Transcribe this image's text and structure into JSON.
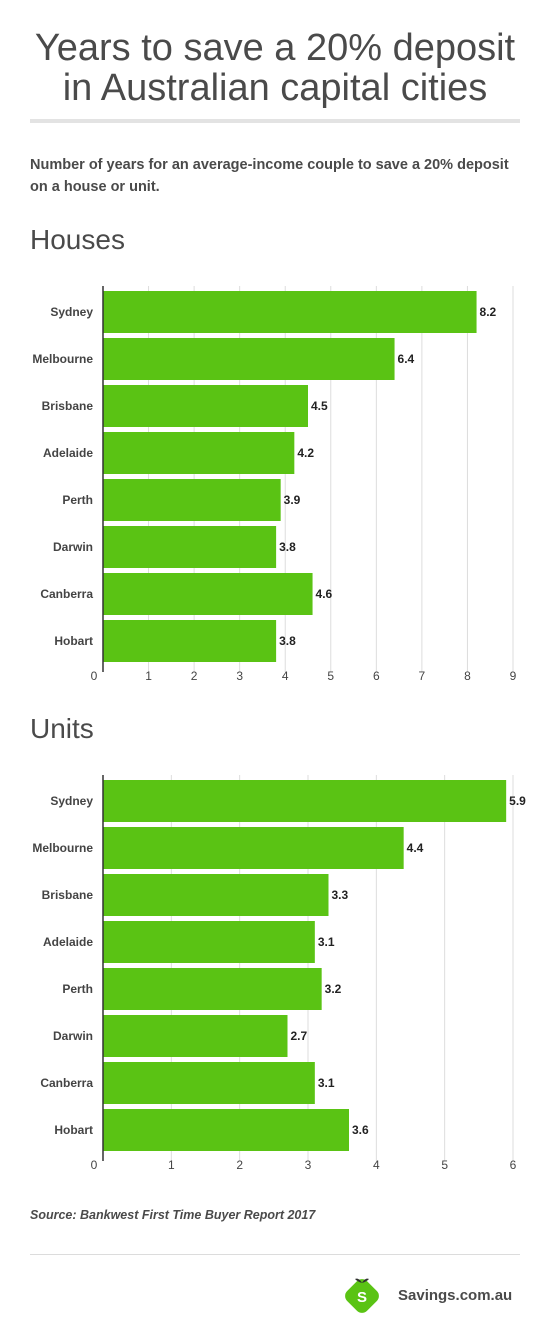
{
  "title_line1": "Years to save a 20% deposit",
  "title_line2": "in Australian capital cities",
  "subtitle": "Number of years for an average-income couple to save a 20% deposit on a house or unit.",
  "houses_heading": "Houses",
  "units_heading": "Units",
  "source": "Source: Bankwest First Time Buyer Report 2017",
  "brand": "Savings.com.au",
  "logo_letter": "S",
  "colors": {
    "bar": "#5ac314",
    "grid": "#dddddd",
    "axis": "#333333",
    "logo": "#5ac314"
  },
  "chart_data": [
    {
      "type": "bar",
      "orientation": "horizontal",
      "title": "Houses",
      "categories": [
        "Sydney",
        "Melbourne",
        "Brisbane",
        "Adelaide",
        "Perth",
        "Darwin",
        "Canberra",
        "Hobart"
      ],
      "values": [
        8.2,
        6.4,
        4.5,
        4.2,
        3.9,
        3.8,
        4.6,
        3.8
      ],
      "value_labels": [
        "8.2",
        "6.4",
        "4.5",
        "4.2",
        "3.9",
        "3.8",
        "4.6",
        "3.8"
      ],
      "xlim": [
        0,
        9
      ],
      "xticks": [
        "0",
        "1",
        "2",
        "3",
        "4",
        "5",
        "6",
        "7",
        "8",
        "9"
      ],
      "grid": true
    },
    {
      "type": "bar",
      "orientation": "horizontal",
      "title": "Units",
      "categories": [
        "Sydney",
        "Melbourne",
        "Brisbane",
        "Adelaide",
        "Perth",
        "Darwin",
        "Canberra",
        "Hobart"
      ],
      "values": [
        5.9,
        4.4,
        3.3,
        3.1,
        3.2,
        2.7,
        3.1,
        3.6
      ],
      "value_labels": [
        "5.9",
        "4.4",
        "3.3",
        "3.1",
        "3.2",
        "2.7",
        "3.1",
        "3.6"
      ],
      "xlim": [
        0,
        6
      ],
      "xticks": [
        "0",
        "1",
        "2",
        "3",
        "4",
        "5",
        "6"
      ],
      "grid": true
    }
  ]
}
